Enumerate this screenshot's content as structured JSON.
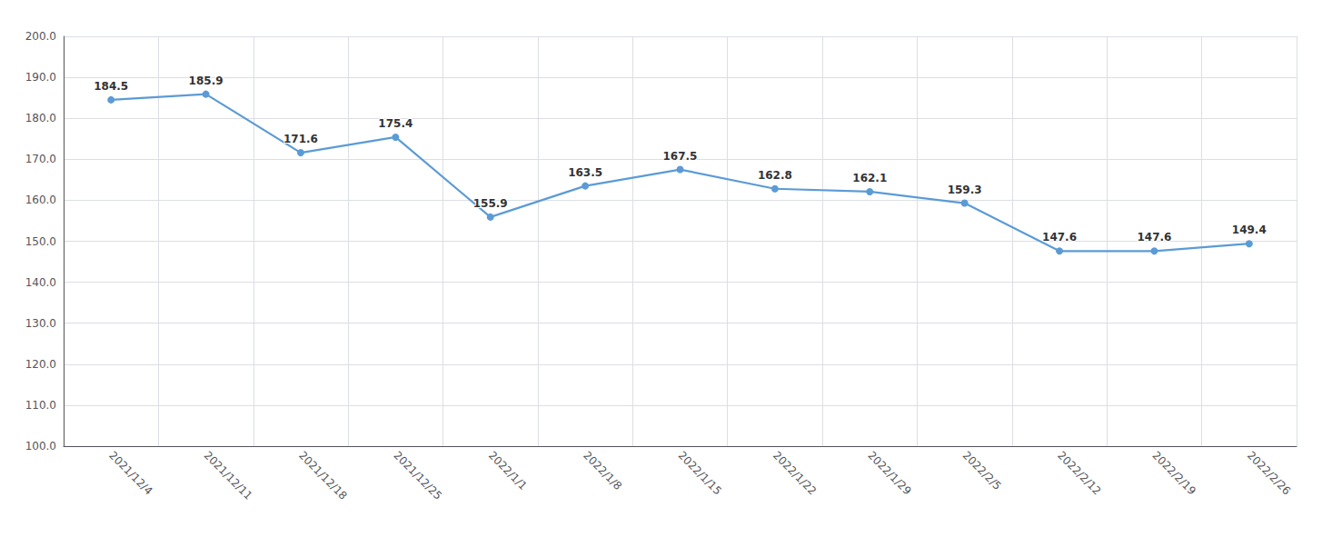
{
  "chart_data": {
    "type": "line",
    "categories": [
      "2021/12/4",
      "2021/12/11",
      "2021/12/18",
      "2021/12/25",
      "2022/1/1",
      "2022/1/8",
      "2022/1/15",
      "2022/1/22",
      "2022/1/29",
      "2022/2/5",
      "2022/2/12",
      "2022/2/19",
      "2022/2/26"
    ],
    "values": [
      184.5,
      185.9,
      171.6,
      175.4,
      155.9,
      163.5,
      167.5,
      162.8,
      162.1,
      159.3,
      147.6,
      147.6,
      149.4
    ],
    "color": "#5b9bd5",
    "marker": "circle",
    "ylim": [
      100.0,
      200.0
    ],
    "yticks": [
      {
        "value": 100,
        "label": "100.0"
      },
      {
        "value": 110,
        "label": "110.0"
      },
      {
        "value": 120,
        "label": "120.0"
      },
      {
        "value": 130,
        "label": "130.0"
      },
      {
        "value": 140,
        "label": "140.0"
      },
      {
        "value": 150,
        "label": "150.0"
      },
      {
        "value": 160,
        "label": "160.0"
      },
      {
        "value": 170,
        "label": "170.0"
      },
      {
        "value": 180,
        "label": "180.0"
      },
      {
        "value": 190,
        "label": "190.0"
      },
      {
        "value": 200,
        "label": "200.0"
      }
    ],
    "grid": true,
    "data_labels": true
  }
}
